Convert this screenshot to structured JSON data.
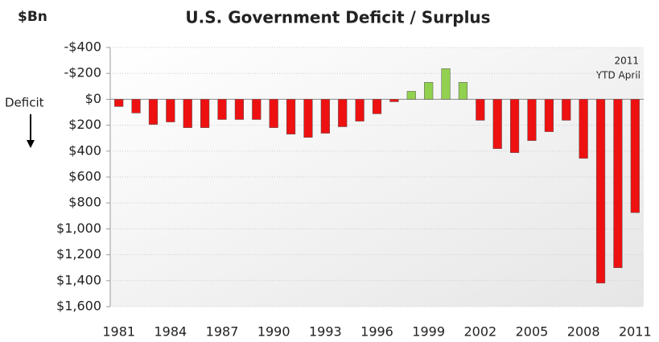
{
  "chart_data": {
    "type": "bar",
    "title": "U.S. Government Deficit / Surplus",
    "y_label": "$Bn",
    "annotations": [
      "Deficit",
      "2011",
      "YTD April"
    ],
    "categories": [
      "1981",
      null,
      null,
      "1984",
      null,
      null,
      "1987",
      null,
      null,
      "1990",
      null,
      null,
      "1993",
      null,
      null,
      "1996",
      null,
      null,
      "1999",
      null,
      null,
      "2002",
      null,
      null,
      "2005",
      null,
      null,
      "2008",
      null,
      null,
      "2011"
    ],
    "values": [
      56,
      106,
      194,
      175,
      219,
      219,
      156,
      156,
      156,
      219,
      269,
      294,
      262,
      212,
      169,
      112,
      19,
      -62,
      -131,
      -237,
      -131,
      162,
      381,
      412,
      319,
      250,
      162,
      456,
      1419,
      1300,
      875
    ],
    "deficit_color": "#ee1111",
    "surplus_color": "#92d050",
    "ylim": [
      -400,
      1600
    ],
    "y_inverted": true,
    "yticks": [
      {
        "value": -400,
        "label": "-$400"
      },
      {
        "value": -200,
        "label": "-$200"
      },
      {
        "value": 0,
        "label": "$0"
      },
      {
        "value": 200,
        "label": "$200"
      },
      {
        "value": 400,
        "label": "$400"
      },
      {
        "value": 600,
        "label": "$600"
      },
      {
        "value": 800,
        "label": "$800"
      },
      {
        "value": 1000,
        "label": "$1,000"
      },
      {
        "value": 1200,
        "label": "$1,200"
      },
      {
        "value": 1400,
        "label": "$1,400"
      },
      {
        "value": 1600,
        "label": "$1,600"
      }
    ],
    "grid": true
  }
}
